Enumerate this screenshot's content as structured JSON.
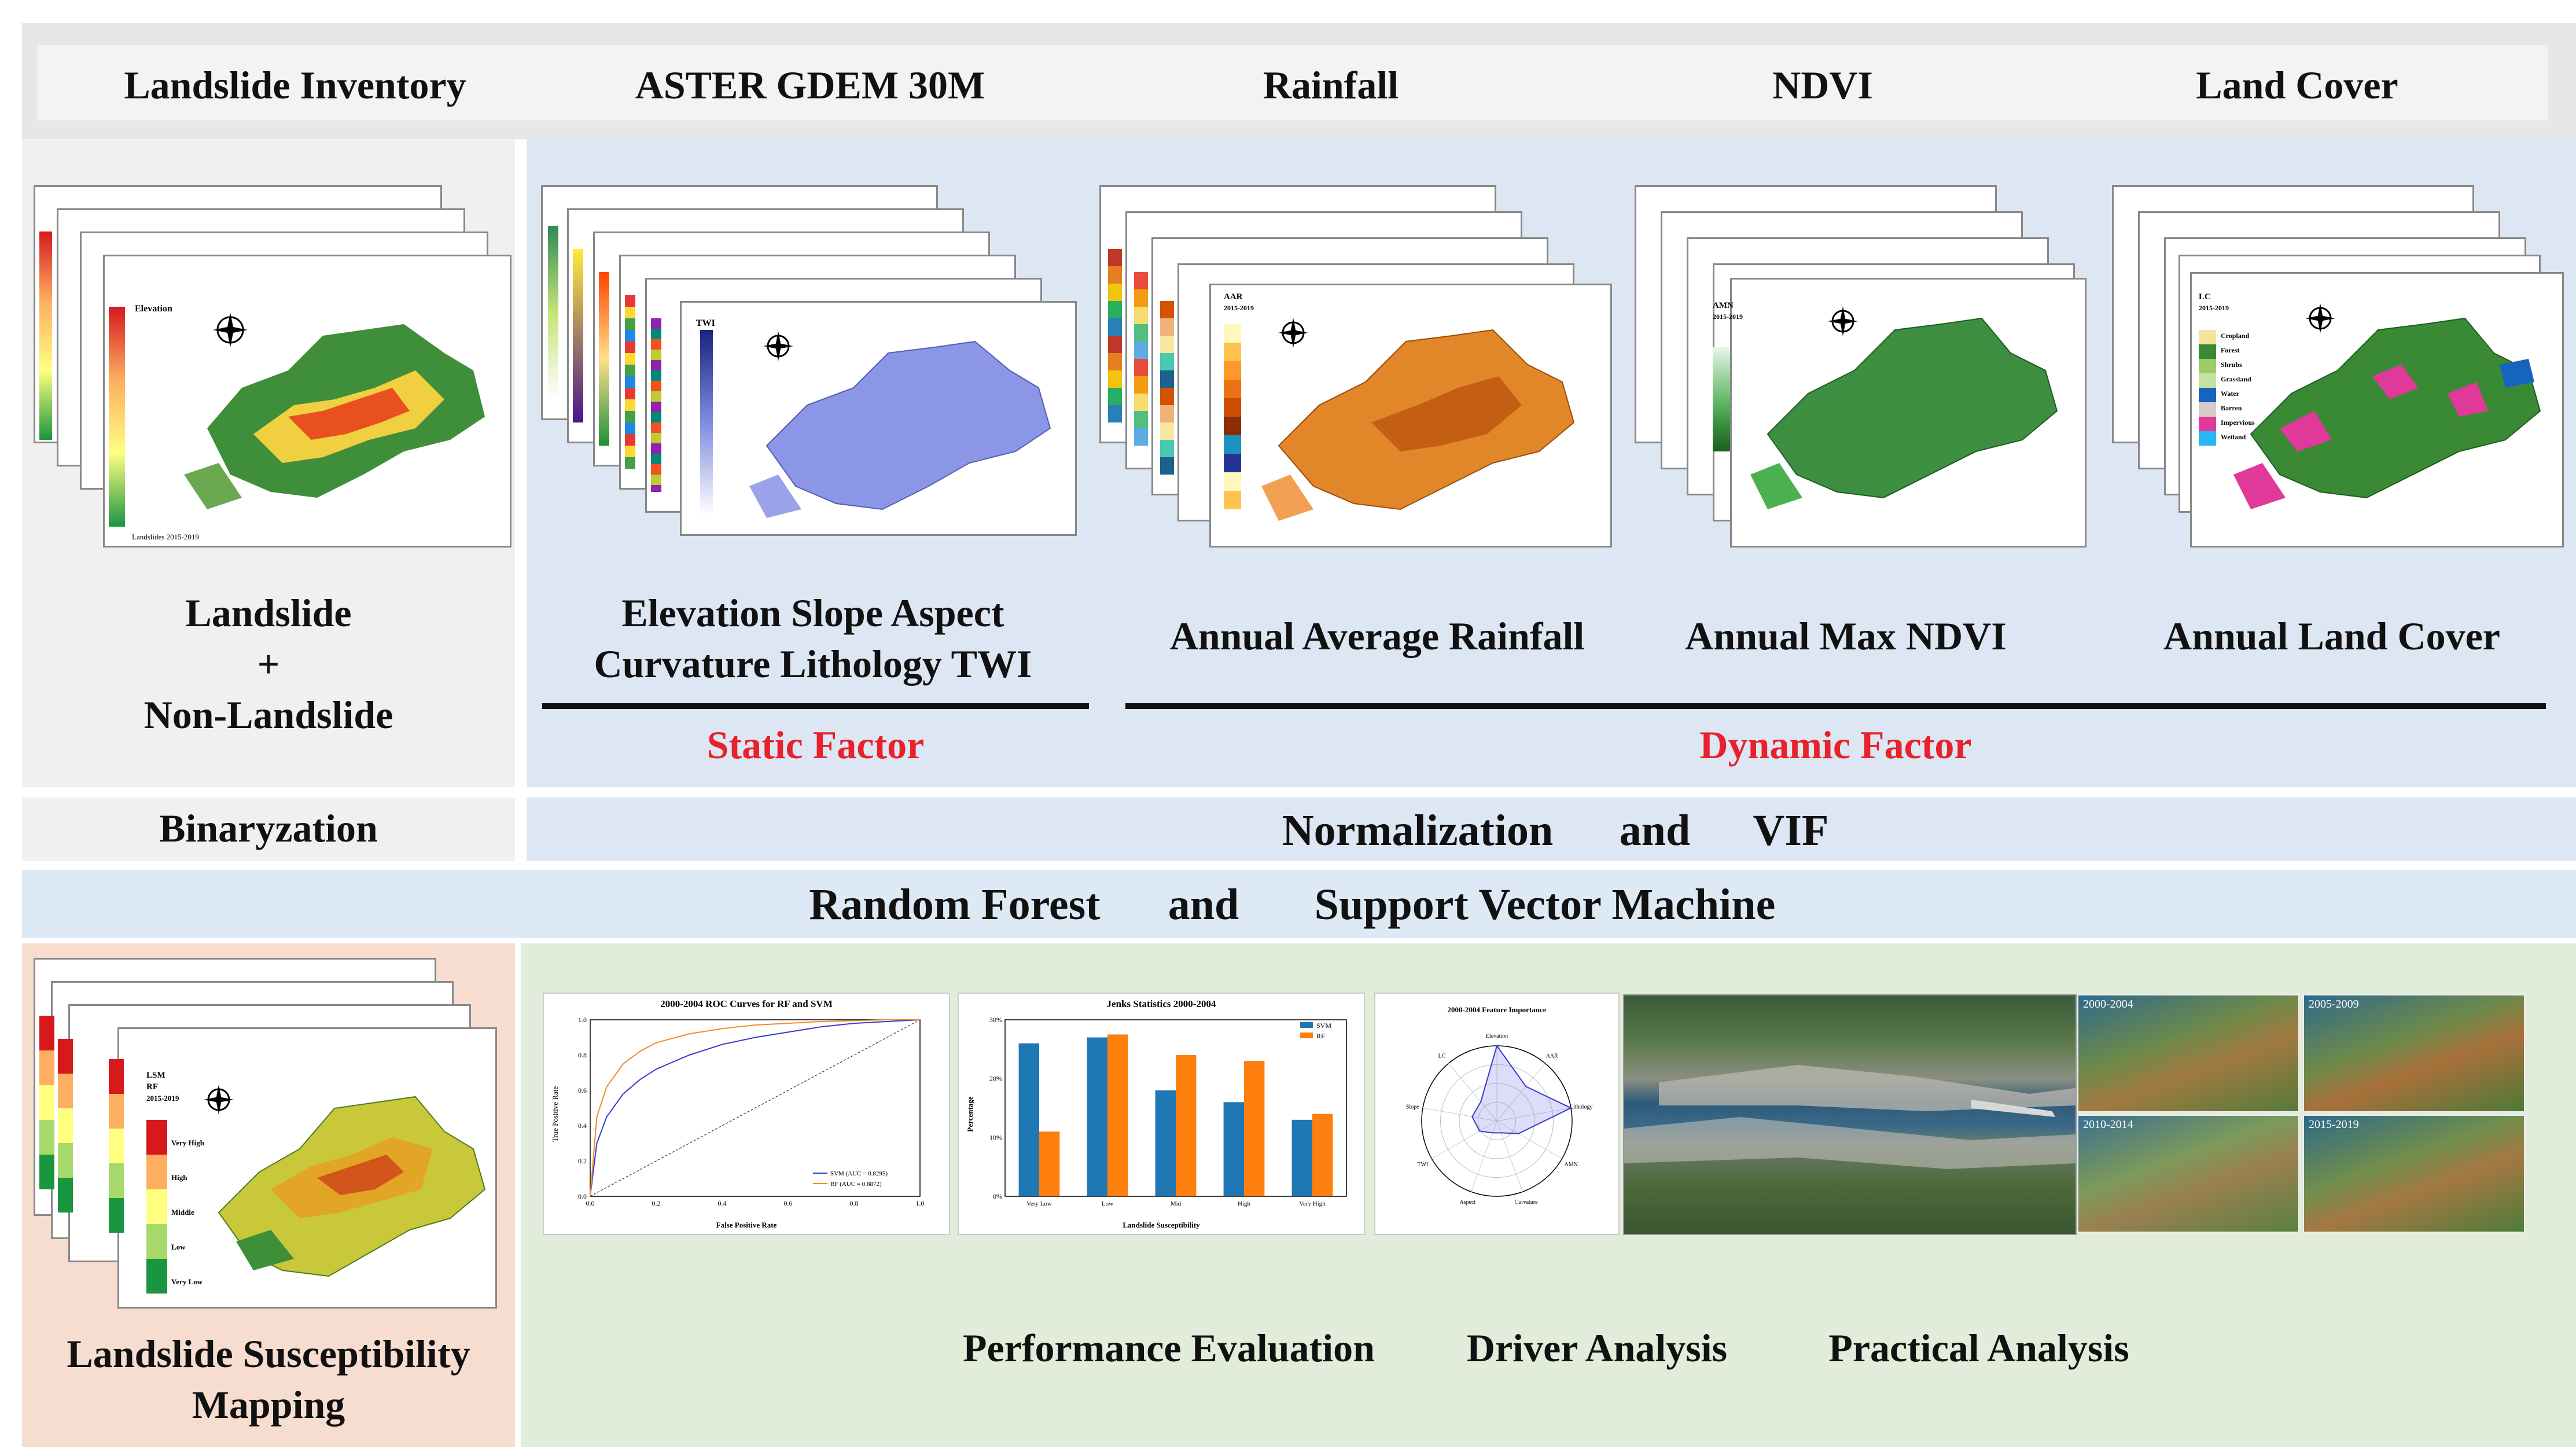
{
  "sources": {
    "landslide_inventory": "Landslide Inventory",
    "dem": "ASTER GDEM 30M",
    "rainfall": "Rainfall",
    "ndvi": "NDVI",
    "land_cover": "Land Cover"
  },
  "inventory": {
    "line1": "Landslide",
    "line2": "+",
    "line3": "Non-Landslide",
    "map_legend_title": "Elevation",
    "map_caption": "Landslides 2015-2019"
  },
  "factors": {
    "static_line1": "Elevation Slope Aspect",
    "static_line2": "Curvature Lithology TWI",
    "static_label": "Static Factor",
    "rainfall_label": "Annual Average Rainfall",
    "ndvi_label": "Annual Max NDVI",
    "landcover_label": "Annual Land Cover",
    "dynamic_label": "Dynamic Factor",
    "twi_legend": "TWI",
    "aar_legend_title": "AAR",
    "aar_legend_years": "2015-2019",
    "amn_legend_title": "AMN",
    "amn_legend_years": "2015-2019",
    "lc_legend_title": "LC",
    "lc_legend_years": "2015-2019",
    "lc_classes": [
      "Cropland",
      "Forest",
      "Shrubs",
      "Grassland",
      "Water",
      "Barren",
      "Impervious",
      "Wetland"
    ],
    "colors": {
      "dem_map": "#7f8ce0",
      "rain_map": "#e07b1e",
      "ndvi_map": "#2e7d32",
      "lc_forest": "#3a8a35",
      "lc_impervious": "#e0399a"
    }
  },
  "preprocess": {
    "binary": "Binaryzation",
    "norm": "Normalization",
    "and": "and",
    "vif": "VIF"
  },
  "models": {
    "rf": "Random Forest",
    "and": "and",
    "svm": "Support Vector Machine"
  },
  "lsm": {
    "line1": "Landslide Susceptibility",
    "line2": "Mapping",
    "legend_title": "LSM",
    "legend_model": "RF",
    "legend_years": "2015-2019",
    "classes": [
      "Very High",
      "High",
      "Middle",
      "Low",
      "Very Low"
    ]
  },
  "analysis": {
    "performance": "Performance Evaluation",
    "driver": "Driver Analysis",
    "practical": "Practical Analysis",
    "imagery_periods": [
      "2000-2004",
      "2005-2009",
      "2010-2014",
      "2015-2019"
    ]
  },
  "roc": {
    "title": "2000-2004 ROC Curves for RF and SVM",
    "xlabel": "False Positive Rate",
    "ylabel": "True Positive Rate",
    "legend": [
      "SVM (AUC = 0.8295)",
      "RF (AUC = 0.8872)"
    ]
  },
  "jenks": {
    "title": "Jenks Statistics 2000-2004",
    "xlabel": "Landslide Susceptibility",
    "ylabel": "Percentage"
  },
  "radar": {
    "title": "2000-2004 Feature Importance",
    "axes": [
      "Elevation",
      "AAR",
      "Lithology",
      "AMN",
      "Curvature",
      "Aspect",
      "TWI",
      "Slope",
      "LC"
    ]
  },
  "chart_data": [
    {
      "type": "line",
      "title": "2000-2004 ROC Curves for RF and SVM",
      "xlabel": "False Positive Rate",
      "ylabel": "True Positive Rate",
      "xlim": [
        0,
        1
      ],
      "ylim": [
        0,
        1
      ],
      "series": [
        {
          "name": "SVM (AUC = 0.8295)",
          "color": "#3a3ad0",
          "x": [
            0,
            0.02,
            0.05,
            0.1,
            0.15,
            0.2,
            0.3,
            0.4,
            0.5,
            0.6,
            0.7,
            0.8,
            0.9,
            1
          ],
          "y": [
            0,
            0.3,
            0.45,
            0.58,
            0.66,
            0.72,
            0.8,
            0.86,
            0.9,
            0.93,
            0.96,
            0.98,
            0.99,
            1
          ]
        },
        {
          "name": "RF (AUC = 0.8872)",
          "color": "#f28c28",
          "x": [
            0,
            0.02,
            0.05,
            0.1,
            0.15,
            0.2,
            0.3,
            0.4,
            0.5,
            0.6,
            0.7,
            0.8,
            0.9,
            1
          ],
          "y": [
            0,
            0.45,
            0.62,
            0.75,
            0.82,
            0.87,
            0.92,
            0.95,
            0.97,
            0.98,
            0.99,
            0.995,
            1,
            1
          ]
        }
      ]
    },
    {
      "type": "bar",
      "title": "Jenks Statistics 2000-2004",
      "xlabel": "Landslide Susceptibility",
      "ylabel": "Percentage",
      "categories": [
        "Very Low",
        "Low",
        "Mid",
        "High",
        "Very High"
      ],
      "ylim": [
        0,
        30
      ],
      "series": [
        {
          "name": "SVM",
          "color": "#1f77b4",
          "values": [
            26,
            27,
            18,
            16,
            13
          ]
        },
        {
          "name": "RF",
          "color": "#ff7f0e",
          "values": [
            11,
            27.5,
            24,
            23,
            14
          ]
        }
      ]
    },
    {
      "type": "radar",
      "title": "2000-2004 Feature Importance",
      "categories": [
        "Elevation",
        "AAR",
        "Lithology",
        "AMN",
        "Curvature",
        "Aspect",
        "TWI",
        "Slope",
        "LC"
      ],
      "values": [
        0.3,
        0.18,
        0.3,
        0.1,
        0.05,
        0.05,
        0.08,
        0.1,
        0.1
      ]
    }
  ]
}
